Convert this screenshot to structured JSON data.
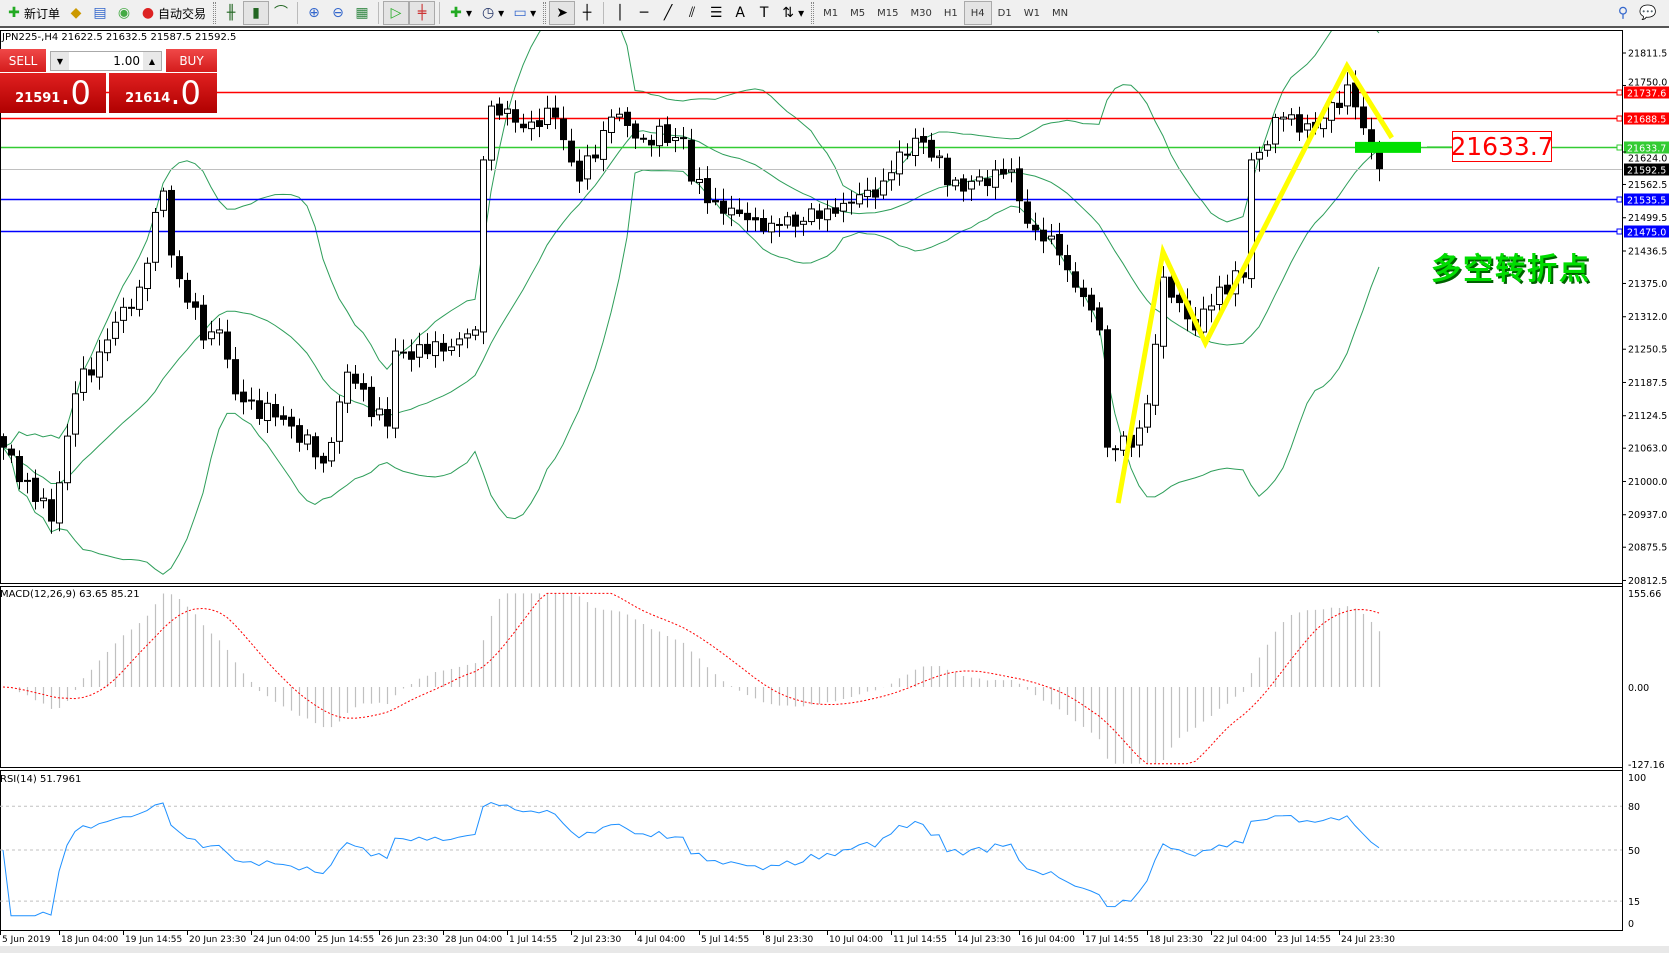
{
  "toolbar": {
    "new_order": "新订单",
    "auto_trading": "自动交易",
    "timeframes": [
      "M1",
      "M5",
      "M15",
      "M30",
      "H1",
      "H4",
      "D1",
      "W1",
      "MN"
    ],
    "selected_timeframe": "H4",
    "icons": [
      "new-order-icon",
      "market-watch-icon",
      "navigator-icon",
      "signals-icon",
      "auto-trading-icon",
      "bar-chart-icon",
      "candlestick-icon",
      "line-chart-icon",
      "zoom-in-icon",
      "zoom-out-icon",
      "tile-windows-icon",
      "chart-shift-icon",
      "autoscroll-icon",
      "new-chart-icon",
      "periods-icon",
      "templates-icon",
      "cursor-icon",
      "crosshair-icon",
      "vertical-line-icon",
      "horizontal-line-icon",
      "trendline-icon",
      "equidistant-channel-icon",
      "fibonacci-icon",
      "text-icon",
      "text-label-icon",
      "arrows-icon",
      "search-icon",
      "chat-icon"
    ]
  },
  "chart": {
    "header": "JPN225-,H4  21622.5 21632.5 21587.5 21592.5"
  },
  "trade_panel": {
    "sell_label": "SELL",
    "buy_label": "BUY",
    "lot": "1.00",
    "sell_price_main": "21591",
    "sell_price_frac": ".0",
    "buy_price_main": "21614",
    "buy_price_frac": ".0"
  },
  "annotation": {
    "text": "多空转折点",
    "price_label": "21633.7"
  },
  "colors": {
    "resistance": "#ff0000",
    "pivot": "#33cc33",
    "support": "#0000ff",
    "zigzag": "#ffff00",
    "bands": "#2e9e5a",
    "macd_hist": "#c0c0c0",
    "macd_signal": "#ff0000",
    "rsi": "#1e90ff"
  },
  "chart_data": {
    "type": "candlestick",
    "symbol": "JPN225-",
    "timeframe": "H4",
    "price_axis": [
      "21811.5",
      "21750.0",
      "21624.0",
      "21562.5",
      "21499.5",
      "21436.5",
      "21375.0",
      "21312.0",
      "21250.5",
      "21187.5",
      "21124.5",
      "21063.0",
      "21000.0",
      "20937.0",
      "20875.5",
      "20812.5"
    ],
    "price_ylim": [
      20812.5,
      21855
    ],
    "close_keypoints": [
      [
        0,
        21065
      ],
      [
        6,
        20925
      ],
      [
        9,
        21166
      ],
      [
        13,
        21268
      ],
      [
        17,
        21368
      ],
      [
        20,
        21550
      ],
      [
        21,
        21429
      ],
      [
        25,
        21268
      ],
      [
        27,
        21287
      ],
      [
        29,
        21166
      ],
      [
        36,
        21105
      ],
      [
        40,
        21035
      ],
      [
        43,
        21207
      ],
      [
        48,
        21105
      ],
      [
        49,
        21247
      ],
      [
        55,
        21247
      ],
      [
        59,
        21287
      ],
      [
        60,
        21609
      ],
      [
        61,
        21711
      ],
      [
        65,
        21670
      ],
      [
        69,
        21690
      ],
      [
        72,
        21569
      ],
      [
        76,
        21690
      ],
      [
        80,
        21650
      ],
      [
        85,
        21650
      ],
      [
        86,
        21569
      ],
      [
        90,
        21508
      ],
      [
        96,
        21489
      ],
      [
        104,
        21508
      ],
      [
        106,
        21529
      ],
      [
        110,
        21569
      ],
      [
        114,
        21650
      ],
      [
        120,
        21550
      ],
      [
        124,
        21590
      ],
      [
        126,
        21590
      ],
      [
        128,
        21489
      ],
      [
        132,
        21429
      ],
      [
        134,
        21368
      ],
      [
        137,
        21287
      ],
      [
        138,
        21065
      ],
      [
        140,
        21086
      ],
      [
        141,
        21065
      ],
      [
        143,
        21147
      ],
      [
        145,
        21387
      ],
      [
        148,
        21308
      ],
      [
        149,
        21287
      ],
      [
        152,
        21368
      ],
      [
        155,
        21387
      ],
      [
        156,
        21609
      ],
      [
        160,
        21690
      ],
      [
        164,
        21670
      ],
      [
        168,
        21751
      ],
      [
        170,
        21670
      ],
      [
        172,
        21592.5
      ]
    ],
    "hlines": [
      {
        "price": 21737.6,
        "label": "21737.6",
        "color": "#ff0000"
      },
      {
        "price": 21688.5,
        "label": "21688.5",
        "color": "#ff0000"
      },
      {
        "price": 21633.7,
        "label": "21633.7",
        "color": "#33cc33"
      },
      {
        "price": 21535.5,
        "label": "21535.5",
        "color": "#0000ff"
      },
      {
        "price": 21475.0,
        "label": "21475.0",
        "color": "#0000ff"
      }
    ],
    "bid": {
      "price": 21592.5,
      "label": "21592.5"
    },
    "zigzag": [
      [
        139.4,
        20959
      ],
      [
        145,
        21435
      ],
      [
        150.3,
        21262
      ],
      [
        168,
        21787
      ],
      [
        173.6,
        21651
      ]
    ],
    "time_axis": [
      "5 Jun 2019",
      "18 Jun 04:00",
      "19 Jun 14:55",
      "20 Jun 23:30",
      "24 Jun 04:00",
      "25 Jun 14:55",
      "26 Jun 23:30",
      "28 Jun 04:00",
      "1 Jul 14:55",
      "2 Jul 23:30",
      "4 Jul 04:00",
      "5 Jul 14:55",
      "8 Jul 23:30",
      "10 Jul 04:00",
      "11 Jul 14:55",
      "14 Jul 23:30",
      "16 Jul 04:00",
      "17 Jul 14:55",
      "18 Jul 23:30",
      "22 Jul 04:00",
      "23 Jul 14:55",
      "24 Jul 23:30"
    ],
    "indicators": {
      "bollinger": {
        "period": 20,
        "deviation": 2
      },
      "macd": {
        "label": "MACD(12,26,9) 63.65 85.21",
        "axis": [
          "155.66",
          "0.00",
          "-127.16"
        ],
        "ylim": [
          -127.16,
          155.66
        ]
      },
      "rsi": {
        "label": "RSI(14) 51.7961",
        "axis": [
          "100",
          "80",
          "50",
          "15",
          "0"
        ],
        "levels": [
          80,
          50,
          15
        ]
      }
    }
  }
}
